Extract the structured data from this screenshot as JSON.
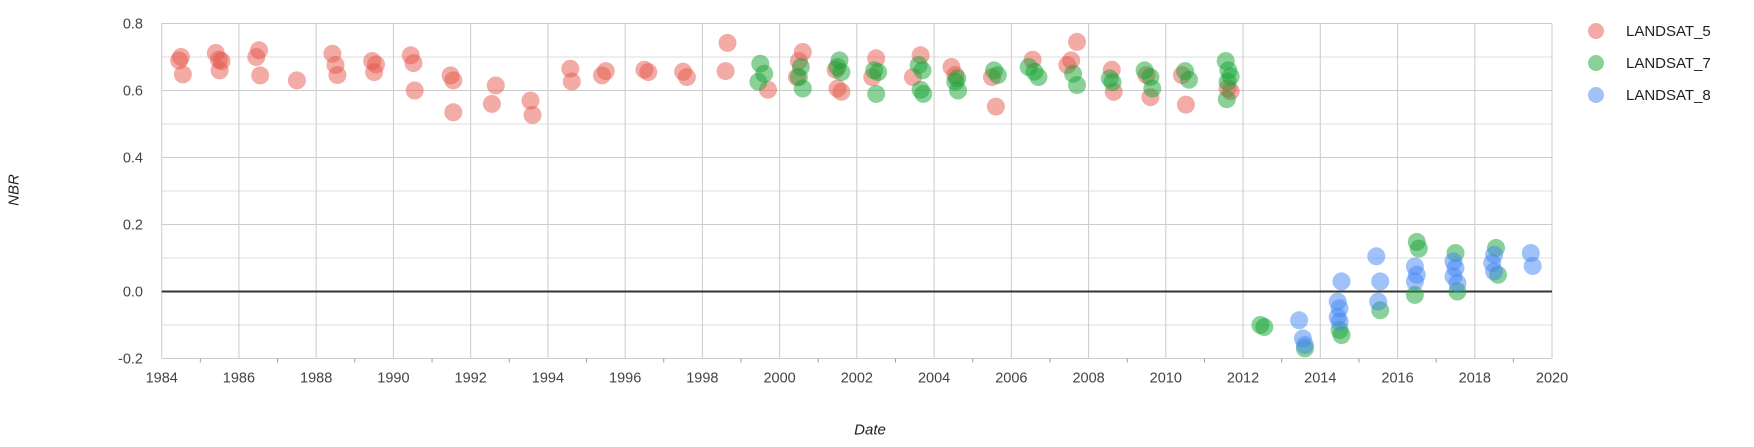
{
  "chart_data": {
    "type": "scatter",
    "title": "",
    "xlabel": "Date",
    "ylabel": "NBR",
    "xlim": [
      1984,
      2020
    ],
    "ylim": [
      -0.2,
      0.8
    ],
    "x_ticks": [
      1984,
      1986,
      1988,
      1990,
      1992,
      1994,
      1996,
      1998,
      2000,
      2002,
      2004,
      2006,
      2008,
      2010,
      2012,
      2014,
      2016,
      2018,
      2020
    ],
    "y_ticks": [
      -0.2,
      0.0,
      0.2,
      0.4,
      0.6,
      0.8
    ],
    "grid": true,
    "legend_position": "right",
    "series": [
      {
        "name": "LANDSAT_5",
        "color": "#E5574B",
        "points": [
          [
            1984.45,
            0.69
          ],
          [
            1984.5,
            0.7
          ],
          [
            1984.55,
            0.648
          ],
          [
            1985.4,
            0.712
          ],
          [
            1985.48,
            0.692
          ],
          [
            1985.55,
            0.688
          ],
          [
            1985.5,
            0.66
          ],
          [
            1986.45,
            0.7
          ],
          [
            1986.52,
            0.72
          ],
          [
            1986.55,
            0.645
          ],
          [
            1987.5,
            0.63
          ],
          [
            1988.42,
            0.71
          ],
          [
            1988.5,
            0.676
          ],
          [
            1988.55,
            0.646
          ],
          [
            1989.45,
            0.688
          ],
          [
            1989.55,
            0.678
          ],
          [
            1989.5,
            0.655
          ],
          [
            1990.45,
            0.705
          ],
          [
            1990.52,
            0.682
          ],
          [
            1990.55,
            0.6
          ],
          [
            1991.48,
            0.645
          ],
          [
            1991.55,
            0.63
          ],
          [
            1991.55,
            0.535
          ],
          [
            1992.55,
            0.56
          ],
          [
            1992.65,
            0.615
          ],
          [
            1993.55,
            0.57
          ],
          [
            1993.6,
            0.527
          ],
          [
            1994.58,
            0.665
          ],
          [
            1994.62,
            0.627
          ],
          [
            1995.4,
            0.645
          ],
          [
            1995.5,
            0.658
          ],
          [
            1996.5,
            0.662
          ],
          [
            1996.6,
            0.655
          ],
          [
            1997.5,
            0.656
          ],
          [
            1997.6,
            0.64
          ],
          [
            1998.65,
            0.742
          ],
          [
            1998.6,
            0.658
          ],
          [
            1999.7,
            0.602
          ],
          [
            2000.45,
            0.64
          ],
          [
            2000.5,
            0.688
          ],
          [
            2000.6,
            0.715
          ],
          [
            2001.45,
            0.662
          ],
          [
            2001.5,
            0.606
          ],
          [
            2001.6,
            0.596
          ],
          [
            2002.4,
            0.64
          ],
          [
            2002.5,
            0.696
          ],
          [
            2003.45,
            0.64
          ],
          [
            2003.65,
            0.705
          ],
          [
            2004.45,
            0.67
          ],
          [
            2004.55,
            0.646
          ],
          [
            2005.5,
            0.64
          ],
          [
            2005.6,
            0.552
          ],
          [
            2006.55,
            0.692
          ],
          [
            2007.45,
            0.676
          ],
          [
            2007.55,
            0.69
          ],
          [
            2007.7,
            0.745
          ],
          [
            2008.6,
            0.662
          ],
          [
            2008.65,
            0.596
          ],
          [
            2009.5,
            0.646
          ],
          [
            2009.6,
            0.58
          ],
          [
            2010.42,
            0.646
          ],
          [
            2010.52,
            0.558
          ],
          [
            2011.6,
            0.606
          ],
          [
            2011.68,
            0.598
          ]
        ]
      },
      {
        "name": "LANDSAT_7",
        "color": "#16A434",
        "points": [
          [
            1999.45,
            0.626
          ],
          [
            1999.5,
            0.68
          ],
          [
            1999.6,
            0.65
          ],
          [
            2000.5,
            0.64
          ],
          [
            2000.55,
            0.67
          ],
          [
            2000.6,
            0.606
          ],
          [
            2001.5,
            0.67
          ],
          [
            2001.55,
            0.69
          ],
          [
            2001.6,
            0.655
          ],
          [
            2002.45,
            0.66
          ],
          [
            2002.55,
            0.655
          ],
          [
            2002.5,
            0.59
          ],
          [
            2003.6,
            0.676
          ],
          [
            2003.7,
            0.66
          ],
          [
            2003.65,
            0.602
          ],
          [
            2003.72,
            0.59
          ],
          [
            2004.55,
            0.626
          ],
          [
            2004.6,
            0.636
          ],
          [
            2004.62,
            0.6
          ],
          [
            2005.55,
            0.66
          ],
          [
            2005.65,
            0.646
          ],
          [
            2006.45,
            0.67
          ],
          [
            2006.6,
            0.656
          ],
          [
            2006.7,
            0.64
          ],
          [
            2007.6,
            0.65
          ],
          [
            2007.7,
            0.616
          ],
          [
            2008.55,
            0.636
          ],
          [
            2008.62,
            0.625
          ],
          [
            2009.45,
            0.66
          ],
          [
            2009.6,
            0.64
          ],
          [
            2009.65,
            0.606
          ],
          [
            2010.5,
            0.658
          ],
          [
            2010.6,
            0.632
          ],
          [
            2011.55,
            0.688
          ],
          [
            2011.62,
            0.66
          ],
          [
            2011.68,
            0.642
          ],
          [
            2011.6,
            0.626
          ],
          [
            2011.58,
            0.574
          ],
          [
            2012.45,
            -0.1
          ],
          [
            2012.55,
            -0.106
          ],
          [
            2013.6,
            -0.17
          ],
          [
            2014.5,
            -0.115
          ],
          [
            2014.55,
            -0.13
          ],
          [
            2015.55,
            -0.056
          ],
          [
            2016.45,
            -0.01
          ],
          [
            2016.5,
            0.148
          ],
          [
            2016.55,
            0.128
          ],
          [
            2017.5,
            0.115
          ],
          [
            2017.55,
            0.0
          ],
          [
            2018.55,
            0.13
          ],
          [
            2018.6,
            0.05
          ]
        ]
      },
      {
        "name": "LANDSAT_8",
        "color": "#4285F4",
        "points": [
          [
            2013.45,
            -0.086
          ],
          [
            2013.55,
            -0.14
          ],
          [
            2013.6,
            -0.16
          ],
          [
            2014.45,
            -0.03
          ],
          [
            2014.5,
            -0.05
          ],
          [
            2014.45,
            -0.076
          ],
          [
            2014.5,
            -0.09
          ],
          [
            2014.55,
            0.03
          ],
          [
            2015.45,
            0.105
          ],
          [
            2015.55,
            0.03
          ],
          [
            2015.5,
            -0.03
          ],
          [
            2016.45,
            0.075
          ],
          [
            2016.5,
            0.05
          ],
          [
            2016.45,
            0.03
          ],
          [
            2017.45,
            0.09
          ],
          [
            2017.5,
            0.07
          ],
          [
            2017.45,
            0.045
          ],
          [
            2017.55,
            0.025
          ],
          [
            2018.45,
            0.085
          ],
          [
            2018.5,
            0.11
          ],
          [
            2018.5,
            0.06
          ],
          [
            2019.45,
            0.115
          ],
          [
            2019.5,
            0.076
          ]
        ]
      }
    ],
    "style": {
      "background": "#ffffff",
      "minor_gridline_color": "#dcdcdc",
      "major_gridline_color": "#cccccc",
      "zero_line_color": "#333333",
      "tick_color": "#9e9e9e",
      "tick_label_color": "#444444",
      "axis_title_color": "#222222",
      "legend_text_color": "#212121",
      "point_radius": 9,
      "point_opacity": 0.5
    }
  }
}
